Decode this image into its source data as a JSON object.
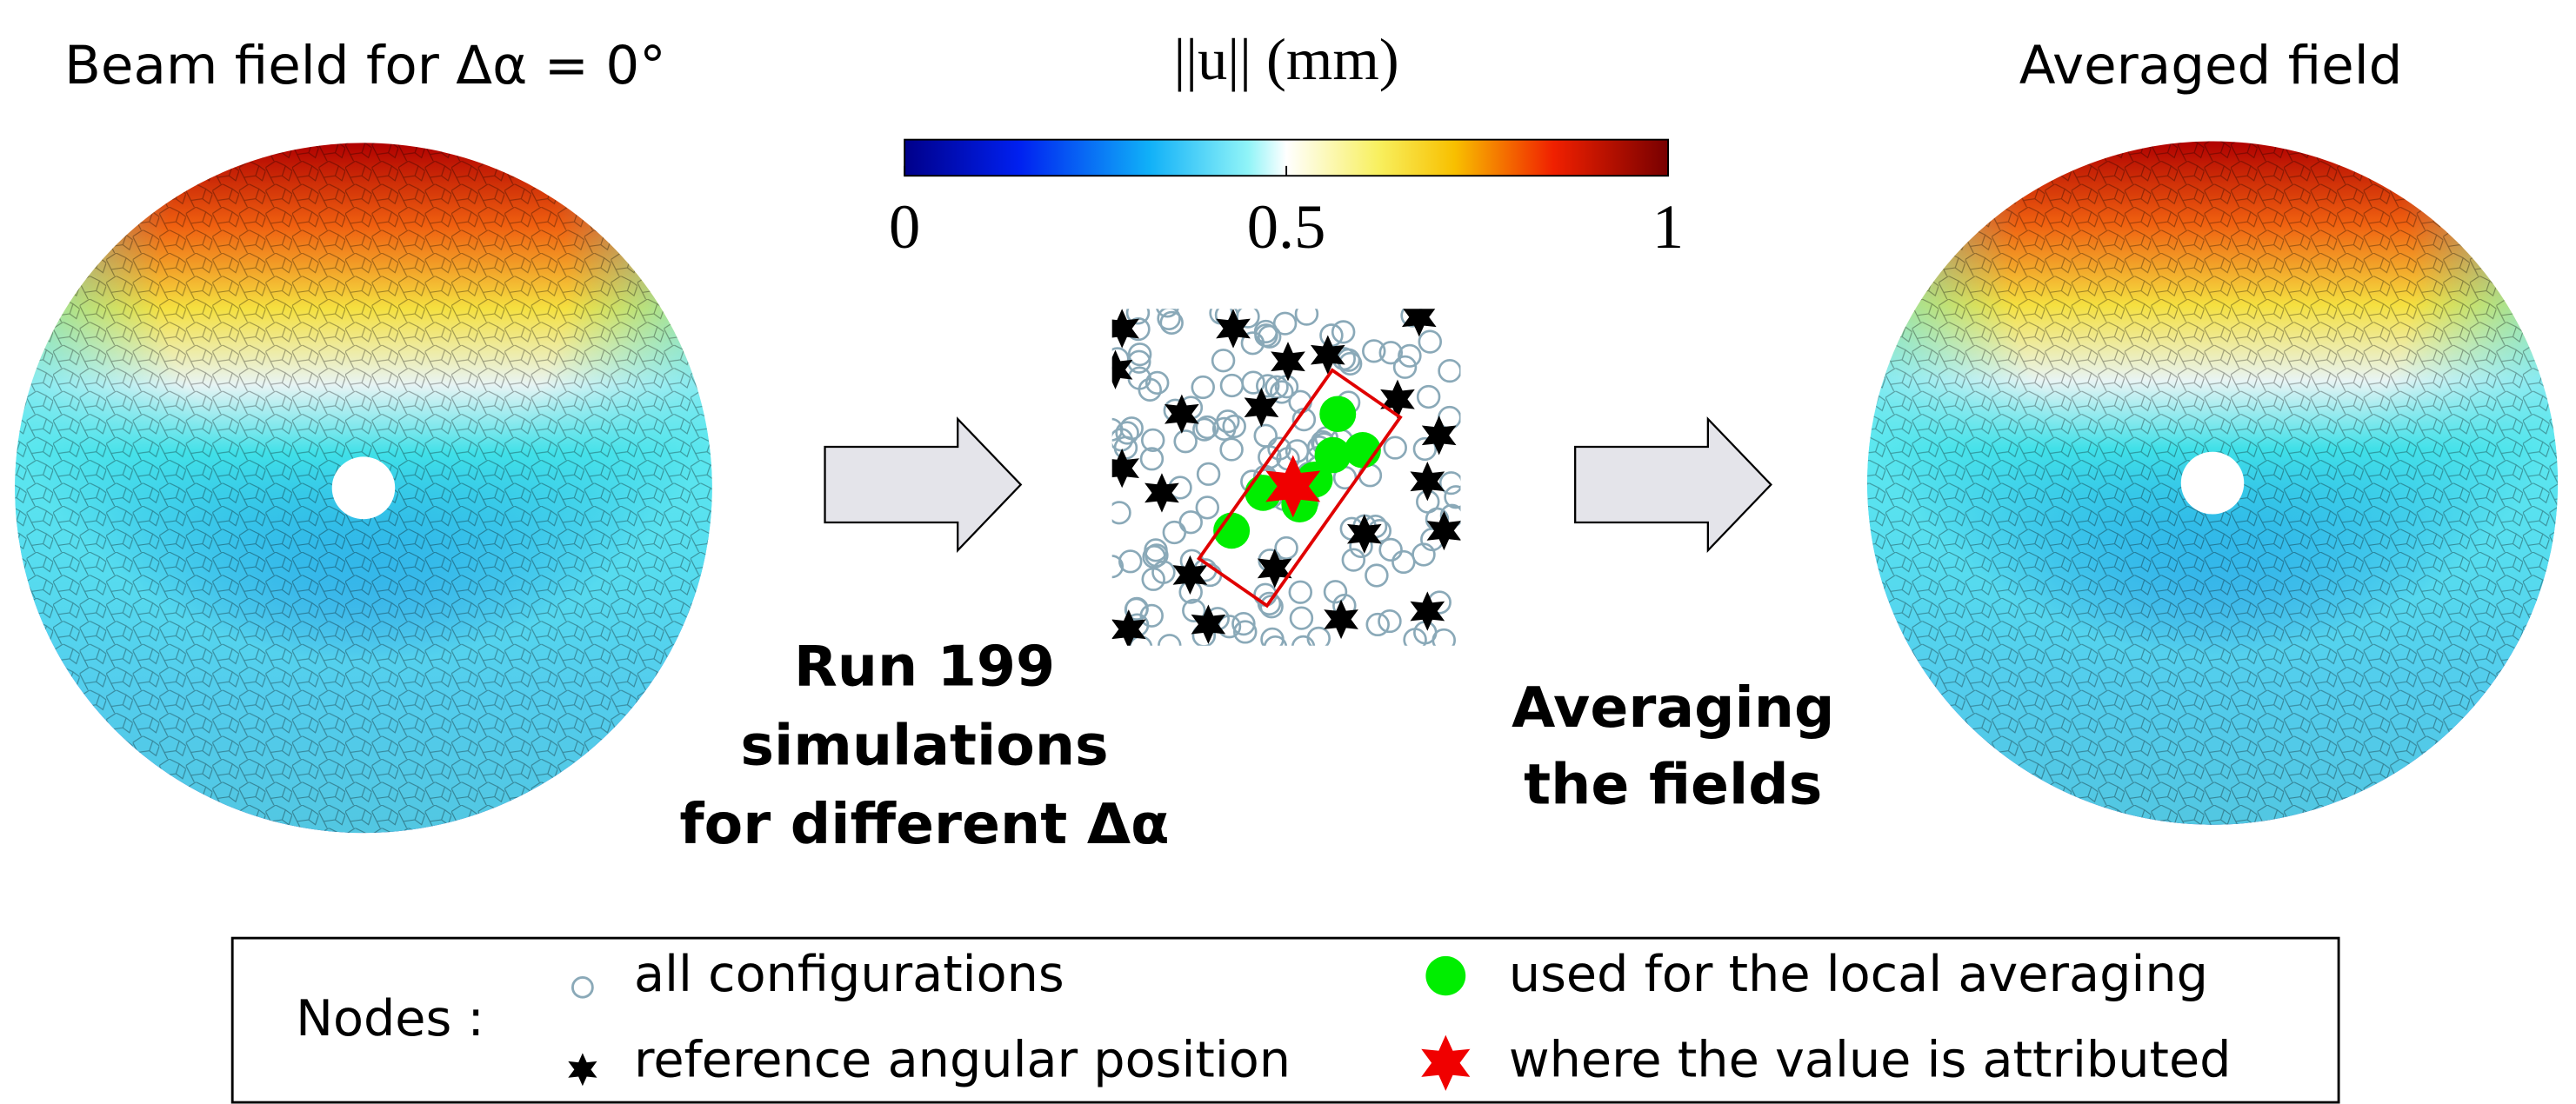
{
  "left_panel": {
    "title": "Beam field for Δα = 0°"
  },
  "colorbar": {
    "label": "||u|| (mm)",
    "ticks": [
      0,
      0.5,
      1
    ]
  },
  "right_panel": {
    "title": "Averaged field"
  },
  "step1": {
    "lines": [
      "Run 199",
      "simulations",
      "for different Δα"
    ]
  },
  "step2": {
    "lines": [
      "Averaging",
      "the fields"
    ]
  },
  "legend": {
    "title": "Nodes :",
    "items": [
      "all configurations",
      "reference angular position",
      "used for the local averaging",
      "where the value is attributed"
    ]
  }
}
